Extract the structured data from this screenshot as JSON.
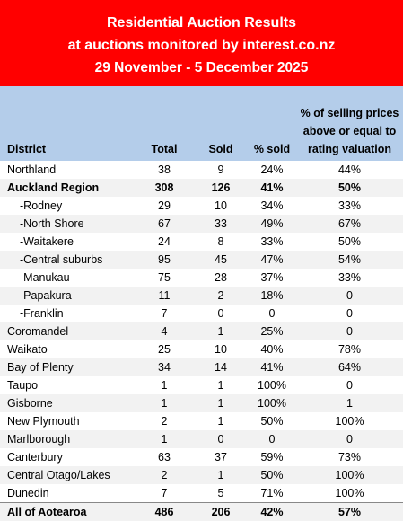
{
  "header": {
    "line1": "Residential Auction Results",
    "line2": "at auctions monitored by interest.co.nz",
    "line3": "29 November - 5 December 2025"
  },
  "table": {
    "columns": [
      "District",
      "Total",
      "Sold",
      "% sold",
      "% of selling prices above or equal to rating valuation"
    ],
    "rows": [
      {
        "district": "Northland",
        "total": "38",
        "sold": "9",
        "pct_sold": "24%",
        "pct_above_rv": "44%"
      },
      {
        "district": "Auckland Region",
        "total": "308",
        "sold": "126",
        "pct_sold": "41%",
        "pct_above_rv": "50%"
      },
      {
        "district": "-Rodney",
        "total": "29",
        "sold": "10",
        "pct_sold": "34%",
        "pct_above_rv": "33%"
      },
      {
        "district": "-North Shore",
        "total": "67",
        "sold": "33",
        "pct_sold": "49%",
        "pct_above_rv": "67%"
      },
      {
        "district": "-Waitakere",
        "total": "24",
        "sold": "8",
        "pct_sold": "33%",
        "pct_above_rv": "50%"
      },
      {
        "district": "-Central suburbs",
        "total": "95",
        "sold": "45",
        "pct_sold": "47%",
        "pct_above_rv": "54%"
      },
      {
        "district": "-Manukau",
        "total": "75",
        "sold": "28",
        "pct_sold": "37%",
        "pct_above_rv": "33%"
      },
      {
        "district": "-Papakura",
        "total": "11",
        "sold": "2",
        "pct_sold": "18%",
        "pct_above_rv": "0"
      },
      {
        "district": "-Franklin",
        "total": "7",
        "sold": "0",
        "pct_sold": "0",
        "pct_above_rv": "0"
      },
      {
        "district": "Coromandel",
        "total": "4",
        "sold": "1",
        "pct_sold": "25%",
        "pct_above_rv": "0"
      },
      {
        "district": "Waikato",
        "total": "25",
        "sold": "10",
        "pct_sold": "40%",
        "pct_above_rv": "78%"
      },
      {
        "district": "Bay of Plenty",
        "total": "34",
        "sold": "14",
        "pct_sold": "41%",
        "pct_above_rv": "64%"
      },
      {
        "district": "Taupo",
        "total": "1",
        "sold": "1",
        "pct_sold": "100%",
        "pct_above_rv": "0"
      },
      {
        "district": "Gisborne",
        "total": "1",
        "sold": "1",
        "pct_sold": "100%",
        "pct_above_rv": "1"
      },
      {
        "district": "New Plymouth",
        "total": "2",
        "sold": "1",
        "pct_sold": "50%",
        "pct_above_rv": "100%"
      },
      {
        "district": "Marlborough",
        "total": "1",
        "sold": "0",
        "pct_sold": "0",
        "pct_above_rv": "0"
      },
      {
        "district": "Canterbury",
        "total": "63",
        "sold": "37",
        "pct_sold": "59%",
        "pct_above_rv": "73%"
      },
      {
        "district": "Central Otago/Lakes",
        "total": "2",
        "sold": "1",
        "pct_sold": "50%",
        "pct_above_rv": "100%"
      },
      {
        "district": "Dunedin",
        "total": "7",
        "sold": "5",
        "pct_sold": "71%",
        "pct_above_rv": "100%"
      },
      {
        "district": "All of Aotearoa",
        "total": "486",
        "sold": "206",
        "pct_sold": "42%",
        "pct_above_rv": "57%"
      }
    ]
  },
  "colors": {
    "banner_bg": "#ff0000",
    "header_bg": "#b4cdea",
    "alt_row_bg": "#f2f2f2"
  }
}
